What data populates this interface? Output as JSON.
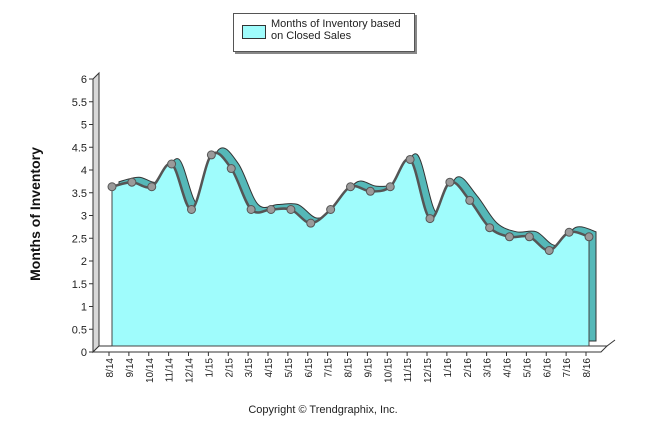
{
  "chart_data": {
    "type": "area",
    "title": "",
    "xlabel": "",
    "ylabel": "Months of Inventory",
    "ylim": [
      0,
      6
    ],
    "yticks": [
      "0",
      "0.5",
      "1",
      "1.5",
      "2",
      "2.5",
      "3",
      "3.5",
      "4",
      "4.5",
      "5",
      "5.5",
      "6"
    ],
    "grid": false,
    "legend_position": "top-center",
    "categories": [
      "8/14",
      "9/14",
      "10/14",
      "11/14",
      "12/14",
      "1/15",
      "2/15",
      "3/15",
      "4/15",
      "5/15",
      "6/15",
      "7/15",
      "8/15",
      "9/15",
      "10/15",
      "11/15",
      "12/15",
      "1/16",
      "2/16",
      "3/16",
      "4/16",
      "5/16",
      "6/16",
      "7/16",
      "8/16"
    ],
    "series": [
      {
        "name": "Months of Inventory based on Closed Sales",
        "values": [
          3.5,
          3.6,
          3.5,
          4.0,
          3.0,
          4.2,
          3.9,
          3.0,
          3.0,
          3.0,
          2.7,
          3.0,
          3.5,
          3.4,
          3.5,
          4.1,
          2.8,
          3.6,
          3.2,
          2.6,
          2.4,
          2.4,
          2.1,
          2.5,
          2.4
        ]
      }
    ]
  },
  "legend": {
    "line1": "Months of Inventory based",
    "line2": "on Closed Sales"
  },
  "footer": {
    "copyright": "Copyright © Trendgraphix, Inc."
  },
  "colors": {
    "fill": "#9ffcfc",
    "side": "#55b8b8",
    "line": "#555555",
    "marker": "#9a9a9a"
  }
}
